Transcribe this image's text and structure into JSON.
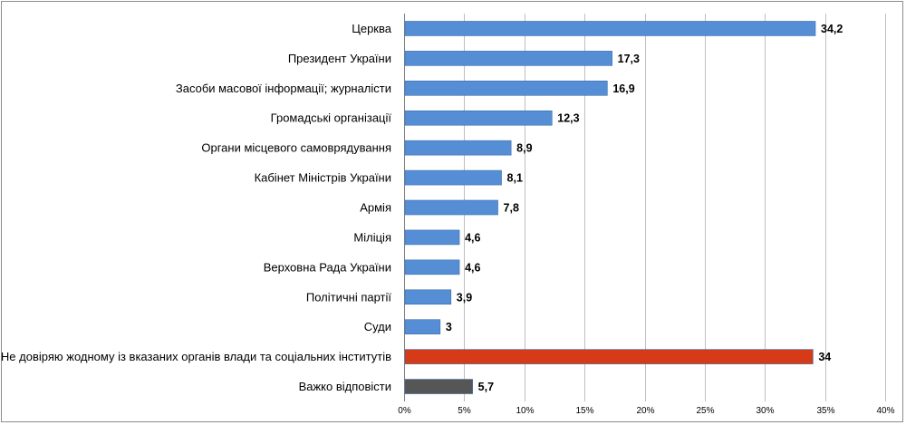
{
  "chart_data": {
    "type": "bar",
    "orientation": "horizontal",
    "title": "",
    "xlabel": "",
    "ylabel": "",
    "xlim": [
      0,
      40
    ],
    "x_ticks": [
      "0%",
      "5%",
      "10%",
      "15%",
      "20%",
      "25%",
      "30%",
      "35%",
      "40%"
    ],
    "grid": "vertical",
    "legend": "none",
    "categories": [
      "Церква",
      "Президент України",
      "Засоби масової інформації; журналісти",
      "Громадські організації",
      "Органи місцевого самоврядування",
      "Кабінет Міністрів України",
      "Армія",
      "Міліція",
      "Верховна Рада України",
      "Політичні партії",
      "Суди",
      "Не довіряю жодному із вказаних органів влади та соціальних інститутів",
      "Важко відповісти"
    ],
    "values": [
      34.2,
      17.3,
      16.9,
      12.3,
      8.9,
      8.1,
      7.8,
      4.6,
      4.6,
      3.9,
      3,
      34,
      5.7
    ],
    "value_labels": [
      "34,2",
      "17,3",
      "16,9",
      "12,3",
      "8,9",
      "8,1",
      "7,8",
      "4,6",
      "4,6",
      "3,9",
      "3",
      "34",
      "5,7"
    ],
    "colors": [
      "#558ed5",
      "#558ed5",
      "#558ed5",
      "#558ed5",
      "#558ed5",
      "#558ed5",
      "#558ed5",
      "#558ed5",
      "#558ed5",
      "#558ed5",
      "#558ed5",
      "#d53b16",
      "#565656"
    ]
  }
}
